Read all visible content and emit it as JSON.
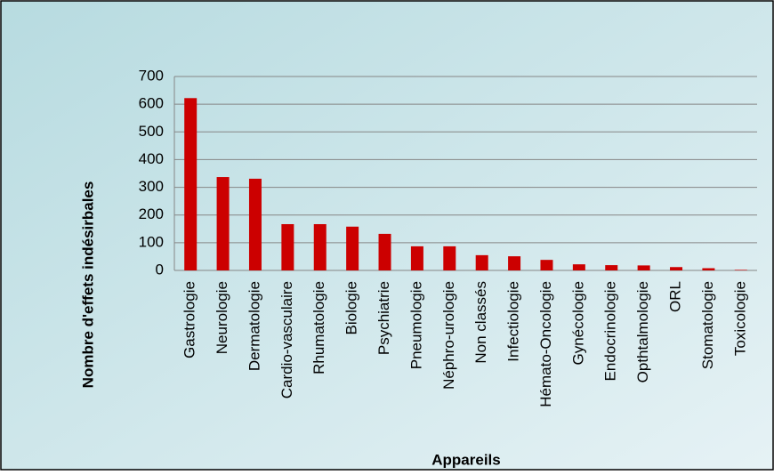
{
  "chart_data": {
    "type": "bar",
    "y_label": "Nombre d'effets  indésirbales",
    "x_label": "Appareils",
    "categories": [
      "Gastrologie",
      "Neurologie",
      "Dermatologie",
      "Cardio-vasculaire",
      "Rhumatologie",
      "Biologie",
      "Psychiatrie",
      "Pneumologie",
      "Néphro-urologie",
      "Non classés",
      "Infectiologie",
      "Hémato-Oncologie",
      "Gynécologie",
      "Endocrinologie",
      "Opthtalmologie",
      "ORL",
      "Stomatologie",
      "Toxicologie"
    ],
    "values": [
      622,
      337,
      331,
      167,
      167,
      158,
      132,
      87,
      87,
      55,
      51,
      38,
      22,
      19,
      18,
      12,
      8,
      2
    ],
    "color": "#cc0000",
    "ylim": [
      0,
      700
    ],
    "yticks": [
      0,
      100,
      200,
      300,
      400,
      500,
      600,
      700
    ],
    "grid": true
  }
}
